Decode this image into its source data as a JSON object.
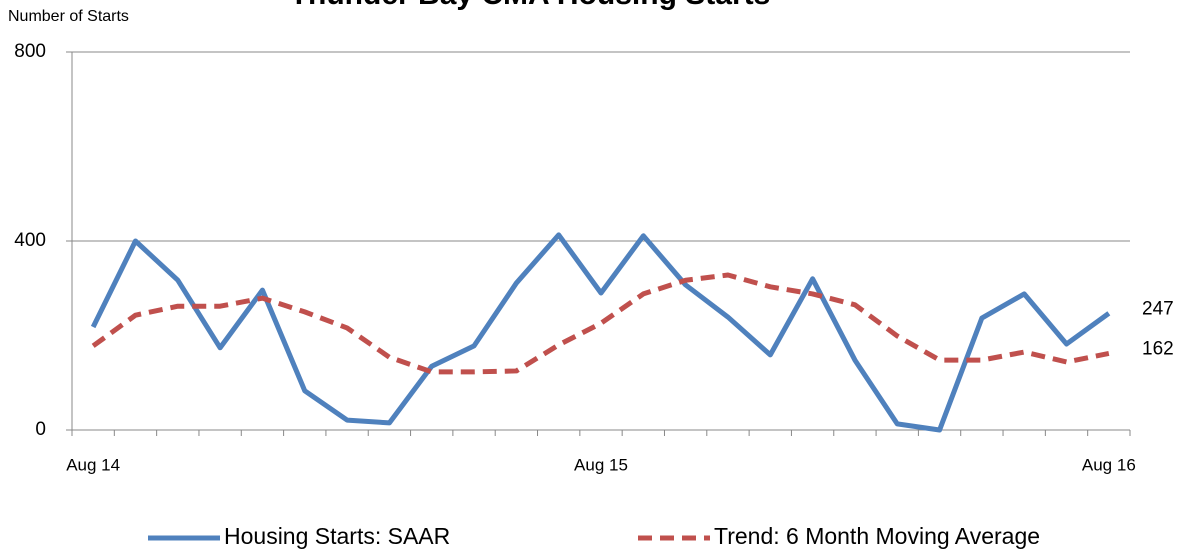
{
  "chart_data": {
    "type": "line",
    "title": "Thunder Bay CMA Housing Starts",
    "y_label": "Number of Starts",
    "categories": [
      "Aug 14",
      null,
      null,
      null,
      null,
      null,
      null,
      null,
      null,
      null,
      null,
      null,
      "Aug 15",
      null,
      null,
      null,
      null,
      null,
      null,
      null,
      null,
      null,
      null,
      null,
      "Aug 16"
    ],
    "series": [
      {
        "name": "Housing Starts: SAAR",
        "color": "#4f81bd",
        "dash": false,
        "values": [
          218,
          400,
          317,
          174,
          296,
          83,
          21,
          15,
          135,
          178,
          311,
          413,
          290,
          411,
          307,
          239,
          159,
          320,
          148,
          13,
          0,
          237,
          288,
          182,
          247
        ]
      },
      {
        "name": "Trend: 6 Month Moving Average",
        "color": "#c0504d",
        "dash": true,
        "values": [
          178,
          243,
          262,
          262,
          279,
          250,
          216,
          154,
          123,
          123,
          125,
          180,
          226,
          288,
          317,
          328,
          303,
          288,
          265,
          199,
          148,
          148,
          165,
          144,
          162
        ]
      }
    ],
    "ylim": [
      0,
      800
    ],
    "yticks": [
      0,
      400,
      800
    ],
    "grid": true,
    "legend": "bottom"
  }
}
